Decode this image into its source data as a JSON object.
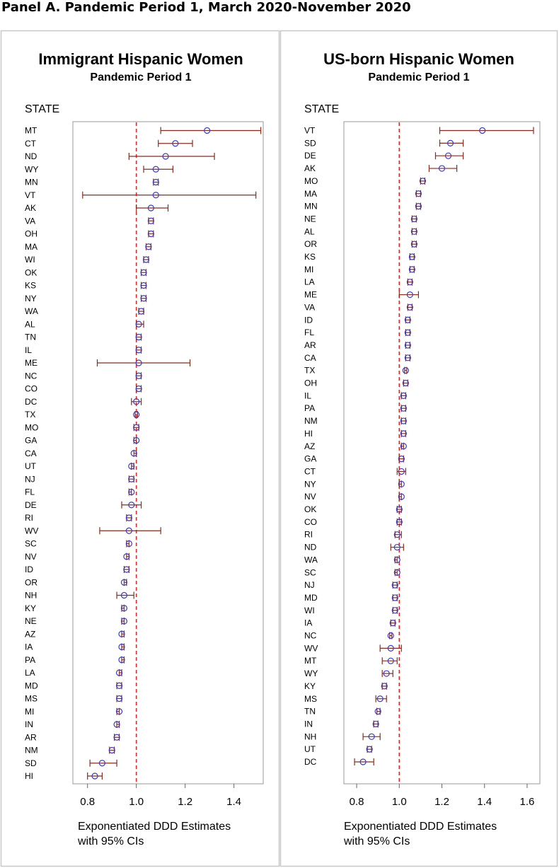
{
  "panel_title": "Panel A. Pandemic Period 1, March 2020-November 2020",
  "chart_data": [
    {
      "type": "forest",
      "title": "Immigrant Hispanic Women",
      "subtitle": "Pandemic Period 1",
      "row_header": "STATE",
      "xlabel": [
        "Exponentiated DDD Estimates",
        "with 95% CIs"
      ],
      "xlim": [
        0.74,
        1.52
      ],
      "xticks": [
        0.8,
        1.0,
        1.2,
        1.4
      ],
      "xtick_labels": [
        "0.8",
        "1.0",
        "1.2",
        "1.4"
      ],
      "reference_line": 1.0,
      "colors": {
        "marker": "#3a3acc",
        "ci": "#8b2b1a",
        "reference": "#e02a2a",
        "frame": "#999999"
      },
      "rows": [
        {
          "state": "MT",
          "est": 1.29,
          "lo": 1.1,
          "hi": 1.51
        },
        {
          "state": "CT",
          "est": 1.16,
          "lo": 1.09,
          "hi": 1.23
        },
        {
          "state": "ND",
          "est": 1.12,
          "lo": 0.97,
          "hi": 1.32
        },
        {
          "state": "WY",
          "est": 1.08,
          "lo": 1.03,
          "hi": 1.15
        },
        {
          "state": "MN",
          "est": 1.08,
          "lo": 1.07,
          "hi": 1.09
        },
        {
          "state": "VT",
          "est": 1.08,
          "lo": 0.78,
          "hi": 1.49
        },
        {
          "state": "AK",
          "est": 1.06,
          "lo": 1.0,
          "hi": 1.13
        },
        {
          "state": "VA",
          "est": 1.06,
          "lo": 1.05,
          "hi": 1.07
        },
        {
          "state": "OH",
          "est": 1.06,
          "lo": 1.05,
          "hi": 1.07
        },
        {
          "state": "MA",
          "est": 1.05,
          "lo": 1.04,
          "hi": 1.06
        },
        {
          "state": "WI",
          "est": 1.04,
          "lo": 1.03,
          "hi": 1.05
        },
        {
          "state": "OK",
          "est": 1.03,
          "lo": 1.02,
          "hi": 1.04
        },
        {
          "state": "KS",
          "est": 1.03,
          "lo": 1.02,
          "hi": 1.04
        },
        {
          "state": "NY",
          "est": 1.03,
          "lo": 1.02,
          "hi": 1.04
        },
        {
          "state": "WA",
          "est": 1.02,
          "lo": 1.01,
          "hi": 1.03
        },
        {
          "state": "AL",
          "est": 1.01,
          "lo": 1.0,
          "hi": 1.03
        },
        {
          "state": "TN",
          "est": 1.01,
          "lo": 1.0,
          "hi": 1.02
        },
        {
          "state": "IL",
          "est": 1.01,
          "lo": 1.0,
          "hi": 1.02
        },
        {
          "state": "ME",
          "est": 1.01,
          "lo": 0.84,
          "hi": 1.22
        },
        {
          "state": "NC",
          "est": 1.01,
          "lo": 1.0,
          "hi": 1.02
        },
        {
          "state": "CO",
          "est": 1.01,
          "lo": 1.0,
          "hi": 1.02
        },
        {
          "state": "DC",
          "est": 1.0,
          "lo": 0.98,
          "hi": 1.02
        },
        {
          "state": "TX",
          "est": 1.0,
          "lo": 0.995,
          "hi": 1.005
        },
        {
          "state": "MO",
          "est": 1.0,
          "lo": 0.99,
          "hi": 1.01
        },
        {
          "state": "GA",
          "est": 1.0,
          "lo": 0.99,
          "hi": 1.0
        },
        {
          "state": "CA",
          "est": 0.99,
          "lo": 0.99,
          "hi": 1.0
        },
        {
          "state": "UT",
          "est": 0.98,
          "lo": 0.98,
          "hi": 0.99
        },
        {
          "state": "NJ",
          "est": 0.98,
          "lo": 0.97,
          "hi": 0.99
        },
        {
          "state": "FL",
          "est": 0.98,
          "lo": 0.97,
          "hi": 0.98
        },
        {
          "state": "DE",
          "est": 0.98,
          "lo": 0.94,
          "hi": 1.02
        },
        {
          "state": "RI",
          "est": 0.97,
          "lo": 0.96,
          "hi": 0.98
        },
        {
          "state": "WV",
          "est": 0.97,
          "lo": 0.85,
          "hi": 1.1
        },
        {
          "state": "SC",
          "est": 0.97,
          "lo": 0.96,
          "hi": 0.97
        },
        {
          "state": "NV",
          "est": 0.96,
          "lo": 0.96,
          "hi": 0.97
        },
        {
          "state": "ID",
          "est": 0.96,
          "lo": 0.95,
          "hi": 0.97
        },
        {
          "state": "OR",
          "est": 0.95,
          "lo": 0.95,
          "hi": 0.96
        },
        {
          "state": "NH",
          "est": 0.95,
          "lo": 0.92,
          "hi": 0.99
        },
        {
          "state": "KY",
          "est": 0.95,
          "lo": 0.94,
          "hi": 0.95
        },
        {
          "state": "NE",
          "est": 0.95,
          "lo": 0.94,
          "hi": 0.95
        },
        {
          "state": "AZ",
          "est": 0.94,
          "lo": 0.94,
          "hi": 0.95
        },
        {
          "state": "IA",
          "est": 0.94,
          "lo": 0.94,
          "hi": 0.95
        },
        {
          "state": "PA",
          "est": 0.94,
          "lo": 0.94,
          "hi": 0.95
        },
        {
          "state": "LA",
          "est": 0.93,
          "lo": 0.93,
          "hi": 0.94
        },
        {
          "state": "MD",
          "est": 0.93,
          "lo": 0.92,
          "hi": 0.94
        },
        {
          "state": "MS",
          "est": 0.93,
          "lo": 0.92,
          "hi": 0.94
        },
        {
          "state": "MI",
          "est": 0.93,
          "lo": 0.92,
          "hi": 0.93
        },
        {
          "state": "IN",
          "est": 0.92,
          "lo": 0.92,
          "hi": 0.93
        },
        {
          "state": "AR",
          "est": 0.92,
          "lo": 0.91,
          "hi": 0.93
        },
        {
          "state": "NM",
          "est": 0.9,
          "lo": 0.89,
          "hi": 0.91
        },
        {
          "state": "SD",
          "est": 0.86,
          "lo": 0.81,
          "hi": 0.92
        },
        {
          "state": "HI",
          "est": 0.83,
          "lo": 0.8,
          "hi": 0.86
        }
      ]
    },
    {
      "type": "forest",
      "title": "US-born Hispanic Women",
      "subtitle": "Pandemic Period 1",
      "row_header": "STATE",
      "xlabel": [
        "Exponentiated DDD Estimates",
        "with 95% CIs"
      ],
      "xlim": [
        0.74,
        1.66
      ],
      "xticks": [
        0.8,
        1.0,
        1.2,
        1.4,
        1.6
      ],
      "xtick_labels": [
        "0.8",
        "1.0",
        "1.2",
        "1.4",
        "1.6"
      ],
      "reference_line": 1.0,
      "colors": {
        "marker": "#3a3acc",
        "ci": "#8b2b1a",
        "reference": "#e02a2a",
        "frame": "#999999"
      },
      "rows": [
        {
          "state": "VT",
          "est": 1.39,
          "lo": 1.19,
          "hi": 1.63
        },
        {
          "state": "SD",
          "est": 1.24,
          "lo": 1.19,
          "hi": 1.3
        },
        {
          "state": "DE",
          "est": 1.23,
          "lo": 1.17,
          "hi": 1.3
        },
        {
          "state": "AK",
          "est": 1.2,
          "lo": 1.14,
          "hi": 1.27
        },
        {
          "state": "MO",
          "est": 1.11,
          "lo": 1.1,
          "hi": 1.12
        },
        {
          "state": "MA",
          "est": 1.09,
          "lo": 1.08,
          "hi": 1.1
        },
        {
          "state": "MN",
          "est": 1.09,
          "lo": 1.08,
          "hi": 1.1
        },
        {
          "state": "NE",
          "est": 1.07,
          "lo": 1.06,
          "hi": 1.08
        },
        {
          "state": "AL",
          "est": 1.07,
          "lo": 1.06,
          "hi": 1.08
        },
        {
          "state": "OR",
          "est": 1.07,
          "lo": 1.06,
          "hi": 1.08
        },
        {
          "state": "KS",
          "est": 1.06,
          "lo": 1.05,
          "hi": 1.07
        },
        {
          "state": "MI",
          "est": 1.06,
          "lo": 1.05,
          "hi": 1.07
        },
        {
          "state": "LA",
          "est": 1.05,
          "lo": 1.04,
          "hi": 1.06
        },
        {
          "state": "ME",
          "est": 1.05,
          "lo": 1.0,
          "hi": 1.09
        },
        {
          "state": "VA",
          "est": 1.05,
          "lo": 1.04,
          "hi": 1.06
        },
        {
          "state": "ID",
          "est": 1.04,
          "lo": 1.03,
          "hi": 1.05
        },
        {
          "state": "FL",
          "est": 1.04,
          "lo": 1.03,
          "hi": 1.05
        },
        {
          "state": "AR",
          "est": 1.04,
          "lo": 1.03,
          "hi": 1.05
        },
        {
          "state": "CA",
          "est": 1.04,
          "lo": 1.03,
          "hi": 1.05
        },
        {
          "state": "TX",
          "est": 1.03,
          "lo": 1.025,
          "hi": 1.035
        },
        {
          "state": "OH",
          "est": 1.03,
          "lo": 1.02,
          "hi": 1.04
        },
        {
          "state": "IL",
          "est": 1.02,
          "lo": 1.01,
          "hi": 1.03
        },
        {
          "state": "PA",
          "est": 1.02,
          "lo": 1.01,
          "hi": 1.03
        },
        {
          "state": "NM",
          "est": 1.02,
          "lo": 1.01,
          "hi": 1.03
        },
        {
          "state": "HI",
          "est": 1.02,
          "lo": 1.01,
          "hi": 1.03
        },
        {
          "state": "AZ",
          "est": 1.02,
          "lo": 1.01,
          "hi": 1.02
        },
        {
          "state": "GA",
          "est": 1.01,
          "lo": 1.0,
          "hi": 1.02
        },
        {
          "state": "CT",
          "est": 1.01,
          "lo": 0.99,
          "hi": 1.03
        },
        {
          "state": "NY",
          "est": 1.01,
          "lo": 1.0,
          "hi": 1.01
        },
        {
          "state": "NV",
          "est": 1.01,
          "lo": 1.0,
          "hi": 1.01
        },
        {
          "state": "OK",
          "est": 1.0,
          "lo": 0.99,
          "hi": 1.01
        },
        {
          "state": "CO",
          "est": 1.0,
          "lo": 0.99,
          "hi": 1.01
        },
        {
          "state": "RI",
          "est": 0.99,
          "lo": 0.98,
          "hi": 1.01
        },
        {
          "state": "ND",
          "est": 0.99,
          "lo": 0.96,
          "hi": 1.02
        },
        {
          "state": "WA",
          "est": 0.99,
          "lo": 0.98,
          "hi": 0.99
        },
        {
          "state": "SC",
          "est": 0.99,
          "lo": 0.98,
          "hi": 0.99
        },
        {
          "state": "NJ",
          "est": 0.98,
          "lo": 0.97,
          "hi": 0.99
        },
        {
          "state": "MD",
          "est": 0.98,
          "lo": 0.97,
          "hi": 0.99
        },
        {
          "state": "WI",
          "est": 0.98,
          "lo": 0.97,
          "hi": 0.99
        },
        {
          "state": "IA",
          "est": 0.97,
          "lo": 0.96,
          "hi": 0.98
        },
        {
          "state": "NC",
          "est": 0.96,
          "lo": 0.955,
          "hi": 0.965
        },
        {
          "state": "WV",
          "est": 0.96,
          "lo": 0.91,
          "hi": 1.01
        },
        {
          "state": "MT",
          "est": 0.96,
          "lo": 0.92,
          "hi": 0.99
        },
        {
          "state": "WY",
          "est": 0.94,
          "lo": 0.92,
          "hi": 0.97
        },
        {
          "state": "KY",
          "est": 0.93,
          "lo": 0.92,
          "hi": 0.94
        },
        {
          "state": "MS",
          "est": 0.91,
          "lo": 0.89,
          "hi": 0.94
        },
        {
          "state": "TN",
          "est": 0.9,
          "lo": 0.895,
          "hi": 0.91
        },
        {
          "state": "IN",
          "est": 0.89,
          "lo": 0.88,
          "hi": 0.9
        },
        {
          "state": "NH",
          "est": 0.87,
          "lo": 0.83,
          "hi": 0.91
        },
        {
          "state": "UT",
          "est": 0.86,
          "lo": 0.85,
          "hi": 0.87
        },
        {
          "state": "DC",
          "est": 0.83,
          "lo": 0.79,
          "hi": 0.88
        }
      ]
    }
  ]
}
